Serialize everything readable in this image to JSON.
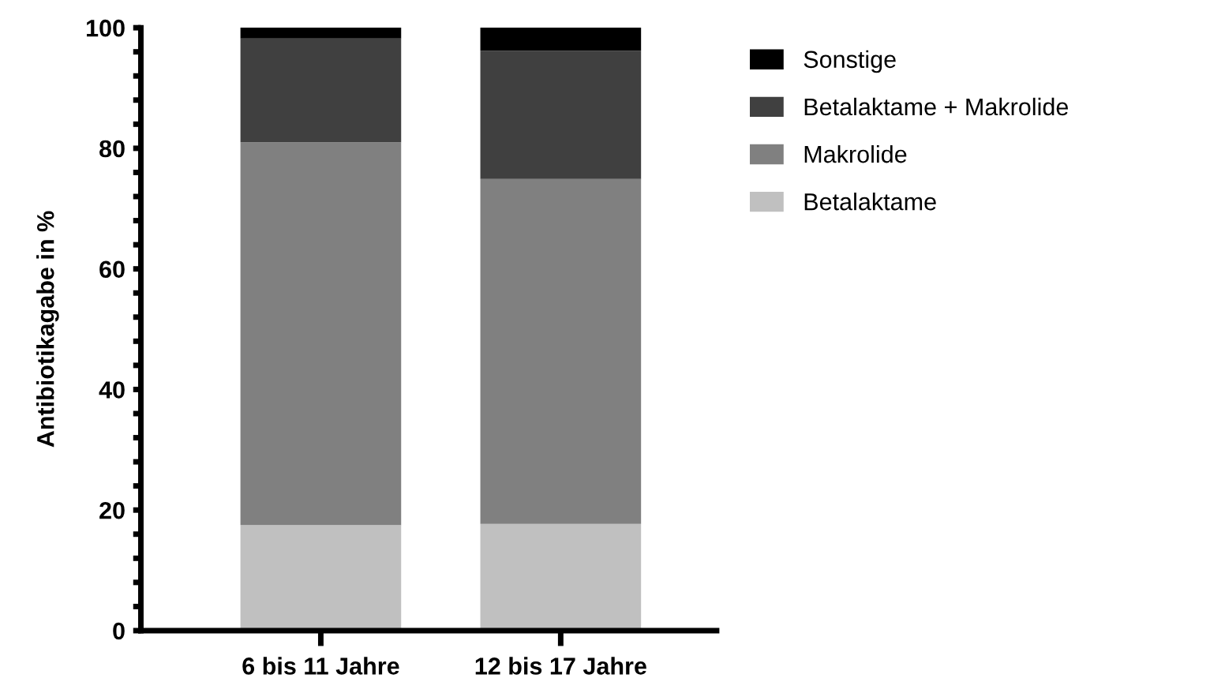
{
  "chart_data": {
    "type": "bar",
    "stacked": true,
    "ylabel": "Antibiotikagabe in %",
    "categories": [
      "6 bis 11 Jahre",
      "12 bis 17 Jahre"
    ],
    "series": [
      {
        "name": "Betalaktame",
        "color": "#c0c0c0",
        "values": [
          17.5,
          17.7
        ]
      },
      {
        "name": "Makrolide",
        "color": "#808080",
        "values": [
          63.5,
          57.2
        ]
      },
      {
        "name": "Betalaktame + Makrolide",
        "color": "#404040",
        "values": [
          17.2,
          21.3
        ]
      },
      {
        "name": "Sonstige",
        "color": "#000000",
        "values": [
          1.8,
          3.8
        ]
      }
    ],
    "ylim": [
      0,
      100
    ],
    "yticks": [
      0,
      {
        "value": 4,
        "label": null
      },
      {
        "value": 8,
        "label": null
      },
      {
        "value": 12,
        "label": null
      },
      {
        "value": 16,
        "label": null
      },
      20,
      {
        "value": 24,
        "label": null
      },
      {
        "value": 28,
        "label": null
      },
      {
        "value": 32,
        "label": null
      },
      {
        "value": 36,
        "label": null
      },
      40,
      {
        "value": 44,
        "label": null
      },
      {
        "value": 48,
        "label": null
      },
      {
        "value": 52,
        "label": null
      },
      {
        "value": 56,
        "label": null
      },
      60,
      {
        "value": 64,
        "label": null
      },
      {
        "value": 68,
        "label": null
      },
      {
        "value": 72,
        "label": null
      },
      {
        "value": 76,
        "label": null
      },
      80,
      {
        "value": 84,
        "label": null
      },
      {
        "value": 88,
        "label": null
      },
      {
        "value": 92,
        "label": null
      },
      {
        "value": 96,
        "label": null
      },
      100
    ],
    "grid": false,
    "legend": "right"
  }
}
